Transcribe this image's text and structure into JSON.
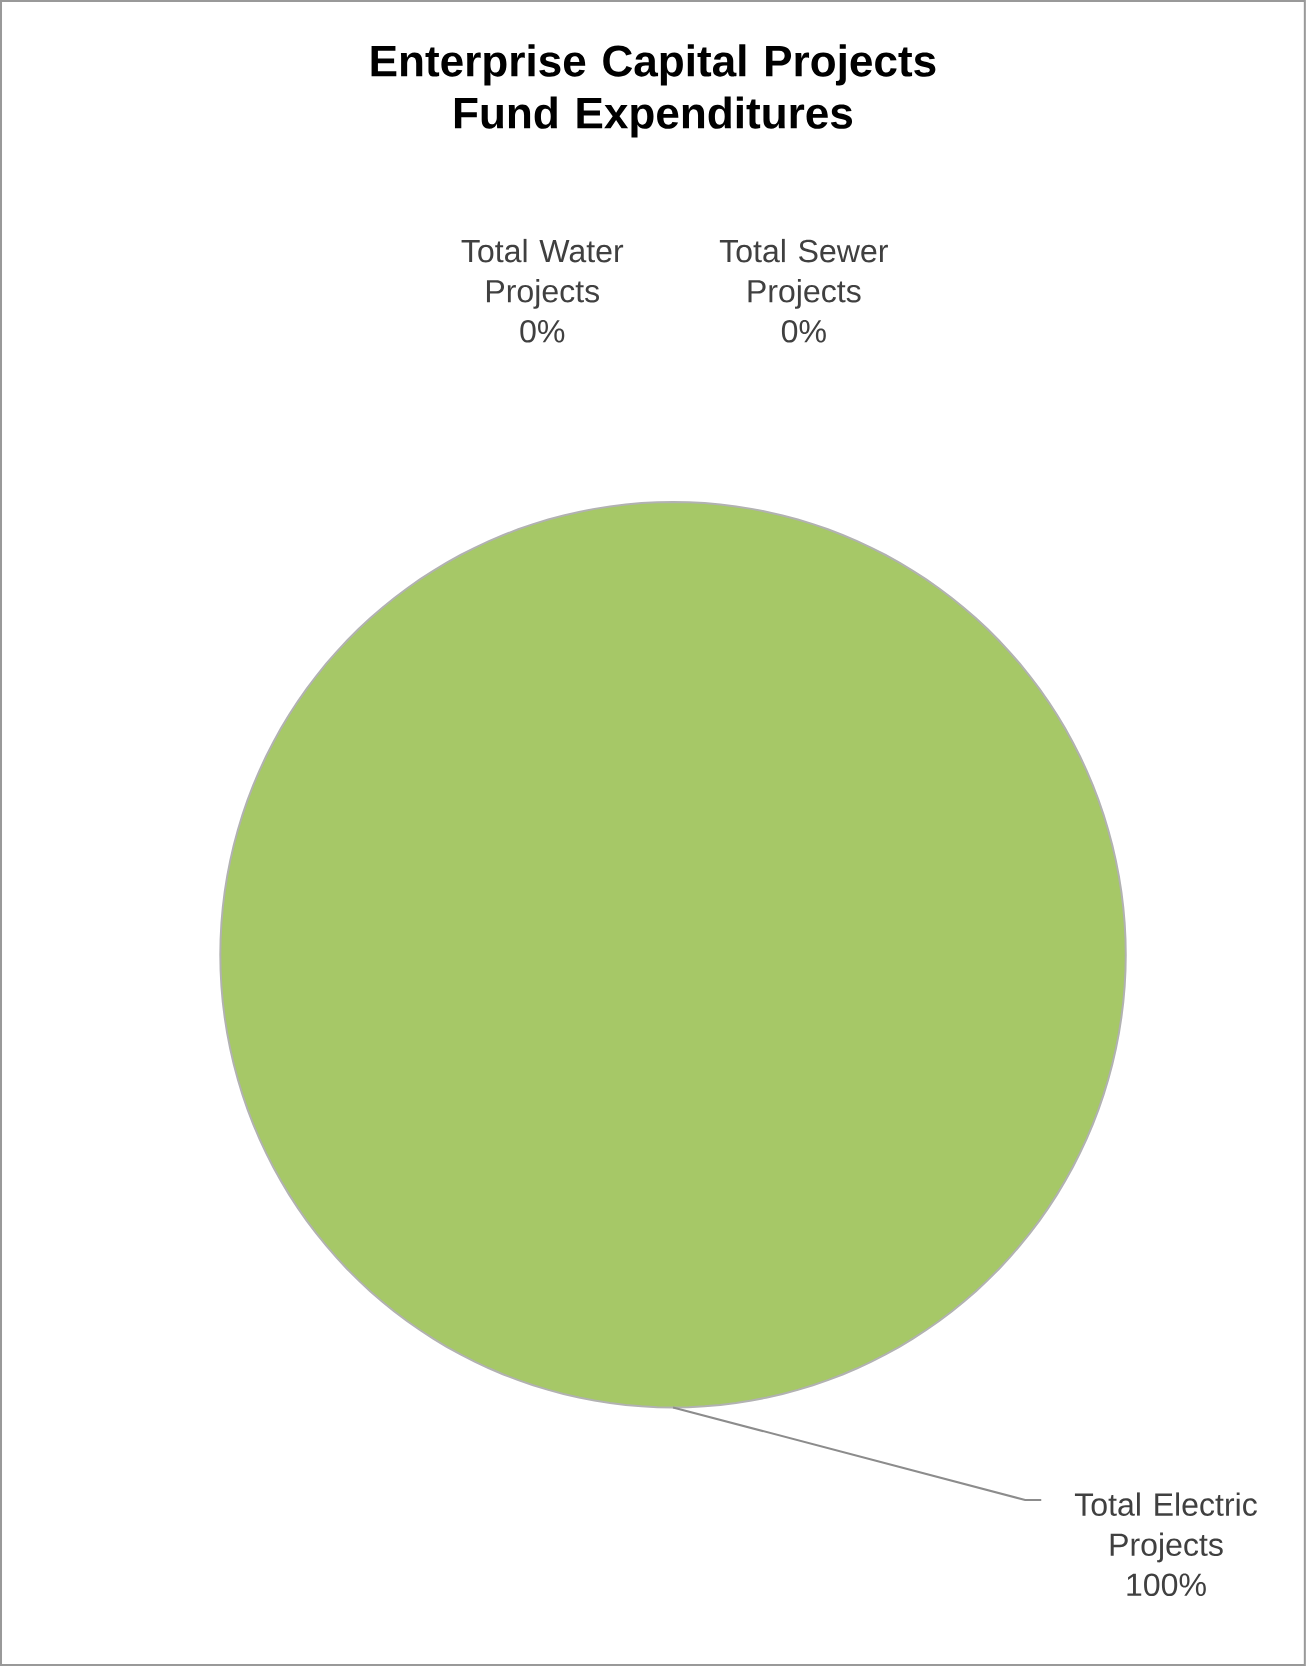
{
  "chart_data": {
    "type": "pie",
    "title": "Enterprise Capital Projects Fund Expenditures",
    "categories": [
      "Total Water Projects",
      "Total Sewer Projects",
      "Total Electric Projects"
    ],
    "values": [
      0,
      0,
      100
    ],
    "value_labels": [
      "0%",
      "0%",
      "100%"
    ],
    "colors": [
      "#4f81bd",
      "#c0504d",
      "#a6c867"
    ]
  }
}
